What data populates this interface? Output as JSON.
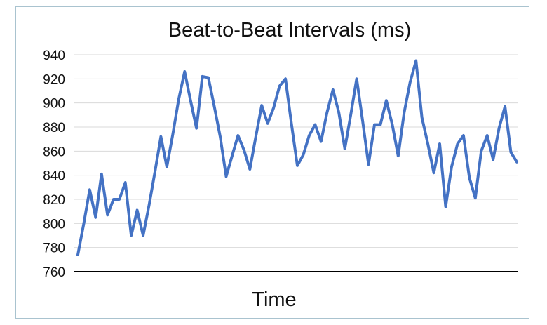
{
  "chart_data": {
    "type": "line",
    "title": "Beat-to-Beat Intervals (ms)",
    "xlabel": "Time",
    "ylabel": "",
    "ylim": [
      760,
      940
    ],
    "y_ticks": [
      760,
      780,
      800,
      820,
      840,
      860,
      880,
      900,
      920,
      940
    ],
    "grid": true,
    "legend": "none",
    "colors": {
      "series": "#4472c4",
      "grid": "#d9d9d9",
      "axis": "#000000",
      "border": "#a9c3cf"
    },
    "series": [
      {
        "values": [
          774,
          800,
          828,
          805,
          841,
          807,
          820,
          820,
          834,
          790,
          811,
          790,
          815,
          843,
          872,
          847,
          874,
          903,
          926,
          902,
          879,
          922,
          921,
          897,
          872,
          839,
          856,
          873,
          861,
          845,
          872,
          898,
          883,
          896,
          914,
          920,
          883,
          848,
          857,
          873,
          882,
          868,
          892,
          911,
          892,
          862,
          890,
          920,
          885,
          849,
          882,
          882,
          902,
          882,
          856,
          892,
          917,
          935,
          888,
          866,
          842,
          866,
          814,
          847,
          866,
          873,
          838,
          821,
          860,
          873,
          853,
          879,
          897,
          859,
          851
        ]
      }
    ]
  }
}
